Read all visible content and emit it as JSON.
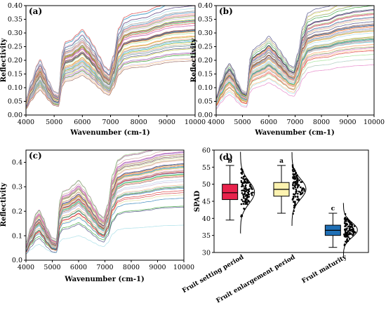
{
  "chart_data": [
    {
      "type": "line",
      "panel_label": "(a)",
      "xlabel": "Wavenumber (cm-1)",
      "ylabel": "Reflectivity",
      "xlim": [
        4000,
        10000
      ],
      "ylim": [
        0.0,
        0.4
      ],
      "xticks": [
        "4000",
        "5000",
        "6000",
        "7000",
        "8000",
        "9000",
        "10000"
      ],
      "yticks": [
        "0.00",
        "0.05",
        "0.10",
        "0.15",
        "0.20",
        "0.25",
        "0.30",
        "0.35",
        "0.40"
      ],
      "series_count": 60,
      "mean_curve": {
        "x": [
          4000,
          4200,
          4400,
          4500,
          4650,
          4800,
          5000,
          5150,
          5300,
          5400,
          5600,
          5800,
          6000,
          6200,
          6400,
          6600,
          6800,
          6950,
          7100,
          7300,
          7500,
          7800,
          8200,
          8700,
          9000,
          9300,
          10000
        ],
        "y": [
          0.04,
          0.09,
          0.135,
          0.15,
          0.125,
          0.09,
          0.06,
          0.055,
          0.175,
          0.2,
          0.205,
          0.22,
          0.235,
          0.215,
          0.19,
          0.16,
          0.13,
          0.12,
          0.16,
          0.24,
          0.27,
          0.28,
          0.285,
          0.3,
          0.31,
          0.315,
          0.32
        ]
      },
      "spread": 0.045
    },
    {
      "type": "line",
      "panel_label": "(b)",
      "xlabel": "Wavenumber (cm-1)",
      "ylabel": "Reflectivity",
      "xlim": [
        4000,
        10000
      ],
      "ylim": [
        0.0,
        0.4
      ],
      "xticks": [
        "4000",
        "5000",
        "6000",
        "7000",
        "8000",
        "9000",
        "10000"
      ],
      "yticks": [
        "0.00",
        "0.05",
        "0.10",
        "0.15",
        "0.20",
        "0.25",
        "0.30",
        "0.35",
        "0.40"
      ],
      "series_count": 60,
      "mean_curve": {
        "x": [
          4000,
          4200,
          4400,
          4500,
          4650,
          4800,
          5000,
          5150,
          5300,
          5400,
          5600,
          5800,
          6000,
          6200,
          6400,
          6600,
          6800,
          6950,
          7100,
          7300,
          7500,
          7800,
          8200,
          8700,
          9000,
          9300,
          10000
        ],
        "y": [
          0.05,
          0.09,
          0.125,
          0.135,
          0.12,
          0.09,
          0.065,
          0.06,
          0.15,
          0.17,
          0.18,
          0.19,
          0.205,
          0.19,
          0.17,
          0.15,
          0.13,
          0.125,
          0.16,
          0.23,
          0.265,
          0.275,
          0.28,
          0.295,
          0.3,
          0.305,
          0.31
        ]
      },
      "spread": 0.05
    },
    {
      "type": "line",
      "panel_label": "(c)",
      "xlabel": "Wavenumber (cm-1)",
      "ylabel": "Reflectivity",
      "xlim": [
        4000,
        10000
      ],
      "ylim": [
        0.0,
        0.45
      ],
      "xticks": [
        "4000",
        "5000",
        "6000",
        "7000",
        "8000",
        "9000",
        "10000"
      ],
      "yticks": [
        "0.0",
        "0.1",
        "0.2",
        "0.3",
        "0.4"
      ],
      "series_count": 60,
      "mean_curve": {
        "x": [
          4000,
          4200,
          4400,
          4500,
          4650,
          4800,
          5000,
          5150,
          5300,
          5400,
          5600,
          5800,
          6000,
          6200,
          6400,
          6600,
          6800,
          6950,
          7100,
          7300,
          7500,
          7800,
          8200,
          8700,
          9000,
          9300,
          10000
        ],
        "y": [
          0.05,
          0.1,
          0.145,
          0.155,
          0.13,
          0.095,
          0.065,
          0.06,
          0.19,
          0.215,
          0.22,
          0.235,
          0.25,
          0.23,
          0.2,
          0.17,
          0.14,
          0.13,
          0.17,
          0.27,
          0.315,
          0.33,
          0.335,
          0.345,
          0.355,
          0.36,
          0.365
        ]
      },
      "spread": 0.045
    },
    {
      "type": "box",
      "panel_label": "(d)",
      "ylabel": "SPAD",
      "ylim": [
        30,
        60
      ],
      "yticks": [
        "30",
        "35",
        "40",
        "45",
        "50",
        "55",
        "60"
      ],
      "categories": [
        "Fruit setting period",
        "Fruit enlargement period",
        "Fruit maturity"
      ],
      "colors": [
        "#e8234c",
        "#fdf3b0",
        "#1f6fb5"
      ],
      "boxes": [
        {
          "whisker_low": 39.5,
          "q1": 45.5,
          "median": 47.5,
          "q3": 50.0,
          "whisker_high": 55.5,
          "mean": 47.6,
          "sd": 3.3,
          "letter": "b"
        },
        {
          "whisker_low": 41.5,
          "q1": 46.5,
          "median": 48.5,
          "q3": 50.5,
          "whisker_high": 55.5,
          "mean": 48.6,
          "sd": 3.0,
          "letter": "a"
        },
        {
          "whisker_low": 31.5,
          "q1": 35.0,
          "median": 36.5,
          "q3": 38.0,
          "whisker_high": 41.5,
          "mean": 36.6,
          "sd": 2.2,
          "letter": "c"
        }
      ]
    }
  ]
}
